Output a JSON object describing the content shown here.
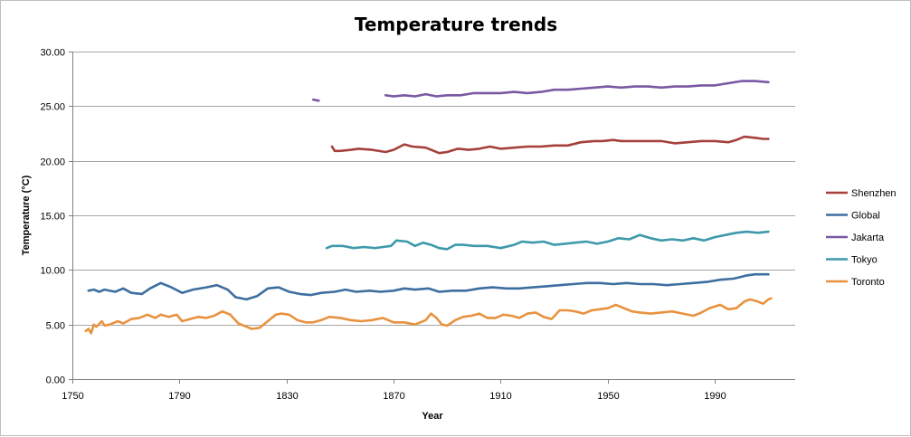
{
  "chart_data": {
    "type": "line",
    "title": "Temperature trends",
    "xlabel": "Year",
    "ylabel": "Temperature (°C)",
    "xlim": [
      1750,
      2020
    ],
    "ylim": [
      0,
      30
    ],
    "x_ticks": [
      "1750",
      "1790",
      "1830",
      "1870",
      "1910",
      "1950",
      "1990"
    ],
    "y_ticks": [
      "0.00",
      "5.00",
      "10.00",
      "15.00",
      "20.00",
      "25.00",
      "30.00"
    ],
    "grid": "horizontal",
    "legend_position": "right",
    "series": [
      {
        "name": "Shenzhen",
        "color": "#a5403c",
        "points": [
          [
            1847,
            21.3
          ],
          [
            1848,
            20.9
          ],
          [
            1850,
            20.9
          ],
          [
            1854,
            21.0
          ],
          [
            1857,
            21.1
          ],
          [
            1862,
            21.0
          ],
          [
            1867,
            20.8
          ],
          [
            1870,
            21.0
          ],
          [
            1874,
            21.5
          ],
          [
            1877,
            21.3
          ],
          [
            1882,
            21.2
          ],
          [
            1887,
            20.7
          ],
          [
            1890,
            20.8
          ],
          [
            1894,
            21.1
          ],
          [
            1898,
            21.0
          ],
          [
            1902,
            21.1
          ],
          [
            1906,
            21.3
          ],
          [
            1910,
            21.1
          ],
          [
            1915,
            21.2
          ],
          [
            1920,
            21.3
          ],
          [
            1925,
            21.3
          ],
          [
            1930,
            21.4
          ],
          [
            1935,
            21.4
          ],
          [
            1940,
            21.7
          ],
          [
            1945,
            21.8
          ],
          [
            1948,
            21.8
          ],
          [
            1952,
            21.9
          ],
          [
            1955,
            21.8
          ],
          [
            1960,
            21.8
          ],
          [
            1965,
            21.8
          ],
          [
            1970,
            21.8
          ],
          [
            1975,
            21.6
          ],
          [
            1980,
            21.7
          ],
          [
            1985,
            21.8
          ],
          [
            1990,
            21.8
          ],
          [
            1995,
            21.7
          ],
          [
            1998,
            21.9
          ],
          [
            2001,
            22.2
          ],
          [
            2005,
            22.1
          ],
          [
            2008,
            22.0
          ],
          [
            2010,
            22.0
          ]
        ]
      },
      {
        "name": "Global",
        "color": "#3d6e9f",
        "points": [
          [
            1756,
            8.1
          ],
          [
            1758,
            8.2
          ],
          [
            1760,
            8.0
          ],
          [
            1762,
            8.2
          ],
          [
            1766,
            8.0
          ],
          [
            1769,
            8.3
          ],
          [
            1772,
            7.9
          ],
          [
            1776,
            7.8
          ],
          [
            1779,
            8.3
          ],
          [
            1783,
            8.8
          ],
          [
            1787,
            8.4
          ],
          [
            1791,
            7.9
          ],
          [
            1795,
            8.2
          ],
          [
            1800,
            8.4
          ],
          [
            1804,
            8.6
          ],
          [
            1808,
            8.2
          ],
          [
            1811,
            7.5
          ],
          [
            1815,
            7.3
          ],
          [
            1819,
            7.6
          ],
          [
            1823,
            8.3
          ],
          [
            1827,
            8.4
          ],
          [
            1831,
            8.0
          ],
          [
            1835,
            7.8
          ],
          [
            1839,
            7.7
          ],
          [
            1843,
            7.9
          ],
          [
            1848,
            8.0
          ],
          [
            1852,
            8.2
          ],
          [
            1856,
            8.0
          ],
          [
            1861,
            8.1
          ],
          [
            1865,
            8.0
          ],
          [
            1870,
            8.1
          ],
          [
            1874,
            8.3
          ],
          [
            1878,
            8.2
          ],
          [
            1883,
            8.3
          ],
          [
            1887,
            8.0
          ],
          [
            1892,
            8.1
          ],
          [
            1897,
            8.1
          ],
          [
            1902,
            8.3
          ],
          [
            1907,
            8.4
          ],
          [
            1912,
            8.3
          ],
          [
            1917,
            8.3
          ],
          [
            1922,
            8.4
          ],
          [
            1927,
            8.5
          ],
          [
            1932,
            8.6
          ],
          [
            1937,
            8.7
          ],
          [
            1942,
            8.8
          ],
          [
            1947,
            8.8
          ],
          [
            1952,
            8.7
          ],
          [
            1957,
            8.8
          ],
          [
            1962,
            8.7
          ],
          [
            1967,
            8.7
          ],
          [
            1972,
            8.6
          ],
          [
            1977,
            8.7
          ],
          [
            1982,
            8.8
          ],
          [
            1987,
            8.9
          ],
          [
            1992,
            9.1
          ],
          [
            1997,
            9.2
          ],
          [
            2002,
            9.5
          ],
          [
            2005,
            9.6
          ],
          [
            2010,
            9.6
          ]
        ]
      },
      {
        "name": "Jakarta",
        "color": "#7a58a3",
        "points": [
          [
            1867,
            26.0
          ],
          [
            1870,
            25.9
          ],
          [
            1874,
            26.0
          ],
          [
            1878,
            25.9
          ],
          [
            1882,
            26.1
          ],
          [
            1886,
            25.9
          ],
          [
            1890,
            26.0
          ],
          [
            1895,
            26.0
          ],
          [
            1900,
            26.2
          ],
          [
            1905,
            26.2
          ],
          [
            1910,
            26.2
          ],
          [
            1915,
            26.3
          ],
          [
            1920,
            26.2
          ],
          [
            1925,
            26.3
          ],
          [
            1930,
            26.5
          ],
          [
            1935,
            26.5
          ],
          [
            1940,
            26.6
          ],
          [
            1945,
            26.7
          ],
          [
            1950,
            26.8
          ],
          [
            1955,
            26.7
          ],
          [
            1960,
            26.8
          ],
          [
            1965,
            26.8
          ],
          [
            1970,
            26.7
          ],
          [
            1975,
            26.8
          ],
          [
            1980,
            26.8
          ],
          [
            1985,
            26.9
          ],
          [
            1990,
            26.9
          ],
          [
            1995,
            27.1
          ],
          [
            2000,
            27.3
          ],
          [
            2005,
            27.3
          ],
          [
            2010,
            27.2
          ]
        ]
      },
      {
        "name": "Jakarta",
        "color": "#7a58a3",
        "points": [
          [
            1840,
            25.6
          ],
          [
            1842,
            25.5
          ]
        ]
      },
      {
        "name": "Tokyo",
        "color": "#3d99ab",
        "points": [
          [
            1845,
            12.0
          ],
          [
            1847,
            12.2
          ],
          [
            1851,
            12.2
          ],
          [
            1855,
            12.0
          ],
          [
            1859,
            12.1
          ],
          [
            1863,
            12.0
          ],
          [
            1866,
            12.1
          ],
          [
            1869,
            12.2
          ],
          [
            1871,
            12.7
          ],
          [
            1875,
            12.6
          ],
          [
            1878,
            12.2
          ],
          [
            1881,
            12.5
          ],
          [
            1884,
            12.3
          ],
          [
            1887,
            12.0
          ],
          [
            1890,
            11.9
          ],
          [
            1893,
            12.3
          ],
          [
            1896,
            12.3
          ],
          [
            1900,
            12.2
          ],
          [
            1905,
            12.2
          ],
          [
            1910,
            12.0
          ],
          [
            1915,
            12.3
          ],
          [
            1918,
            12.6
          ],
          [
            1922,
            12.5
          ],
          [
            1926,
            12.6
          ],
          [
            1930,
            12.3
          ],
          [
            1934,
            12.4
          ],
          [
            1938,
            12.5
          ],
          [
            1942,
            12.6
          ],
          [
            1946,
            12.4
          ],
          [
            1950,
            12.6
          ],
          [
            1954,
            12.9
          ],
          [
            1958,
            12.8
          ],
          [
            1962,
            13.2
          ],
          [
            1966,
            12.9
          ],
          [
            1970,
            12.7
          ],
          [
            1974,
            12.8
          ],
          [
            1978,
            12.7
          ],
          [
            1982,
            12.9
          ],
          [
            1986,
            12.7
          ],
          [
            1990,
            13.0
          ],
          [
            1994,
            13.2
          ],
          [
            1998,
            13.4
          ],
          [
            2002,
            13.5
          ],
          [
            2006,
            13.4
          ],
          [
            2010,
            13.5
          ]
        ]
      },
      {
        "name": "Toronto",
        "color": "#e8923f",
        "points": [
          [
            1755,
            4.4
          ],
          [
            1756,
            4.6
          ],
          [
            1757,
            4.2
          ],
          [
            1758,
            5.0
          ],
          [
            1759,
            4.8
          ],
          [
            1761,
            5.3
          ],
          [
            1762,
            4.9
          ],
          [
            1764,
            5.0
          ],
          [
            1767,
            5.3
          ],
          [
            1769,
            5.1
          ],
          [
            1772,
            5.5
          ],
          [
            1775,
            5.6
          ],
          [
            1778,
            5.9
          ],
          [
            1781,
            5.6
          ],
          [
            1783,
            5.9
          ],
          [
            1786,
            5.7
          ],
          [
            1789,
            5.9
          ],
          [
            1791,
            5.3
          ],
          [
            1794,
            5.5
          ],
          [
            1797,
            5.7
          ],
          [
            1800,
            5.6
          ],
          [
            1803,
            5.8
          ],
          [
            1806,
            6.2
          ],
          [
            1809,
            5.9
          ],
          [
            1812,
            5.1
          ],
          [
            1815,
            4.8
          ],
          [
            1817,
            4.6
          ],
          [
            1820,
            4.7
          ],
          [
            1823,
            5.3
          ],
          [
            1826,
            5.9
          ],
          [
            1828,
            6.0
          ],
          [
            1831,
            5.9
          ],
          [
            1834,
            5.4
          ],
          [
            1837,
            5.2
          ],
          [
            1840,
            5.2
          ],
          [
            1843,
            5.4
          ],
          [
            1846,
            5.7
          ],
          [
            1850,
            5.6
          ],
          [
            1854,
            5.4
          ],
          [
            1858,
            5.3
          ],
          [
            1862,
            5.4
          ],
          [
            1866,
            5.6
          ],
          [
            1870,
            5.2
          ],
          [
            1874,
            5.2
          ],
          [
            1878,
            5.0
          ],
          [
            1882,
            5.4
          ],
          [
            1884,
            6.0
          ],
          [
            1886,
            5.6
          ],
          [
            1888,
            5.0
          ],
          [
            1890,
            4.9
          ],
          [
            1893,
            5.4
          ],
          [
            1896,
            5.7
          ],
          [
            1899,
            5.8
          ],
          [
            1902,
            6.0
          ],
          [
            1905,
            5.6
          ],
          [
            1908,
            5.6
          ],
          [
            1911,
            5.9
          ],
          [
            1914,
            5.8
          ],
          [
            1917,
            5.6
          ],
          [
            1920,
            6.0
          ],
          [
            1923,
            6.1
          ],
          [
            1926,
            5.7
          ],
          [
            1929,
            5.5
          ],
          [
            1932,
            6.3
          ],
          [
            1935,
            6.3
          ],
          [
            1938,
            6.2
          ],
          [
            1941,
            6.0
          ],
          [
            1944,
            6.3
          ],
          [
            1947,
            6.4
          ],
          [
            1950,
            6.5
          ],
          [
            1953,
            6.8
          ],
          [
            1956,
            6.5
          ],
          [
            1959,
            6.2
          ],
          [
            1962,
            6.1
          ],
          [
            1966,
            6.0
          ],
          [
            1970,
            6.1
          ],
          [
            1974,
            6.2
          ],
          [
            1978,
            6.0
          ],
          [
            1982,
            5.8
          ],
          [
            1985,
            6.1
          ],
          [
            1988,
            6.5
          ],
          [
            1992,
            6.8
          ],
          [
            1995,
            6.4
          ],
          [
            1998,
            6.5
          ],
          [
            2001,
            7.1
          ],
          [
            2003,
            7.3
          ],
          [
            2006,
            7.1
          ],
          [
            2008,
            6.9
          ],
          [
            2010,
            7.3
          ],
          [
            2011,
            7.4
          ]
        ]
      }
    ],
    "legend": [
      {
        "label": "Shenzhen",
        "color": "#a5403c"
      },
      {
        "label": "Global",
        "color": "#3d6e9f"
      },
      {
        "label": "Jakarta",
        "color": "#7a58a3"
      },
      {
        "label": "Tokyo",
        "color": "#3d99ab"
      },
      {
        "label": "Toronto",
        "color": "#e8923f"
      }
    ]
  }
}
